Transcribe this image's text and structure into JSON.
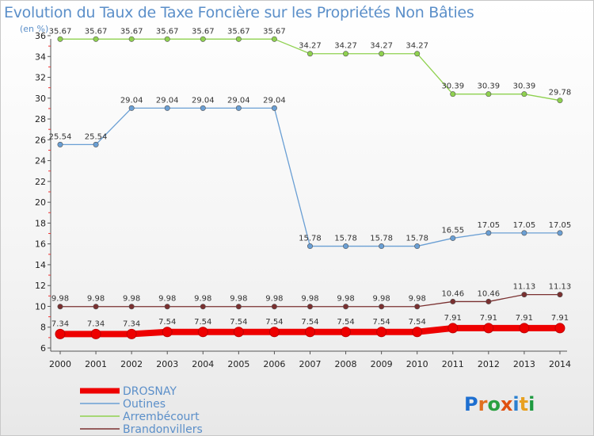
{
  "chart_data": {
    "type": "line",
    "title": "Evolution du Taux de Taxe Foncière sur les Propriétés Non Bâties",
    "unit_label": "(en %)",
    "x": [
      2000,
      2001,
      2002,
      2003,
      2004,
      2005,
      2006,
      2007,
      2008,
      2009,
      2010,
      2011,
      2012,
      2013,
      2014
    ],
    "ylim": [
      6,
      36
    ],
    "yticks": [
      6,
      8,
      10,
      12,
      14,
      16,
      18,
      20,
      22,
      24,
      26,
      28,
      30,
      32,
      34,
      36
    ],
    "grid": false,
    "legend_position": "bottom-left",
    "series": [
      {
        "name": "Arrembécourt",
        "color": "#8fd14f",
        "values": [
          35.67,
          35.67,
          35.67,
          35.67,
          35.67,
          35.67,
          35.67,
          34.27,
          34.27,
          34.27,
          34.27,
          30.39,
          30.39,
          30.39,
          29.78
        ],
        "labels": [
          "35.67",
          "35.67",
          "35.67",
          "35.67",
          "35.67",
          "35.67",
          "35.67",
          "34.27",
          "34.27",
          "34.27",
          "34.27",
          "30.39",
          "30.39",
          "30.39",
          "29.78"
        ]
      },
      {
        "name": "Outines",
        "color": "#6a9fd4",
        "values": [
          25.54,
          25.54,
          29.04,
          29.04,
          29.04,
          29.04,
          29.04,
          15.78,
          15.78,
          15.78,
          15.78,
          16.55,
          17.05,
          17.05,
          17.05
        ],
        "labels": [
          "25.54",
          "25.54",
          "29.04",
          "29.04",
          "29.04",
          "29.04",
          "29.04",
          "15.78",
          "15.78",
          "15.78",
          "15.78",
          "16.55",
          "17.05",
          "17.05",
          "17.05"
        ]
      },
      {
        "name": "Brandonvillers",
        "color": "#7a3030",
        "values": [
          9.98,
          9.98,
          9.98,
          9.98,
          9.98,
          9.98,
          9.98,
          9.98,
          9.98,
          9.98,
          9.98,
          10.46,
          10.46,
          11.13,
          11.13
        ],
        "labels": [
          "9.98",
          "9.98",
          "9.98",
          "9.98",
          "9.98",
          "9.98",
          "9.98",
          "9.98",
          "9.98",
          "9.98",
          "9.98",
          "10.46",
          "10.46",
          "11.13",
          "11.13"
        ]
      },
      {
        "name": "DROSNAY",
        "color": "#ee0000",
        "values": [
          7.34,
          7.34,
          7.34,
          7.54,
          7.54,
          7.54,
          7.54,
          7.54,
          7.54,
          7.54,
          7.54,
          7.91,
          7.91,
          7.91,
          7.91
        ],
        "labels": [
          "7.34",
          "7.34",
          "7.34",
          "7.54",
          "7.54",
          "7.54",
          "7.54",
          "7.54",
          "7.54",
          "7.54",
          "7.54",
          "7.91",
          "7.91",
          "7.91",
          "7.91"
        ]
      }
    ],
    "legend": [
      "DROSNAY",
      "Outines",
      "Arrembécourt",
      "Brandonvillers"
    ]
  },
  "logo": "Proxiti"
}
